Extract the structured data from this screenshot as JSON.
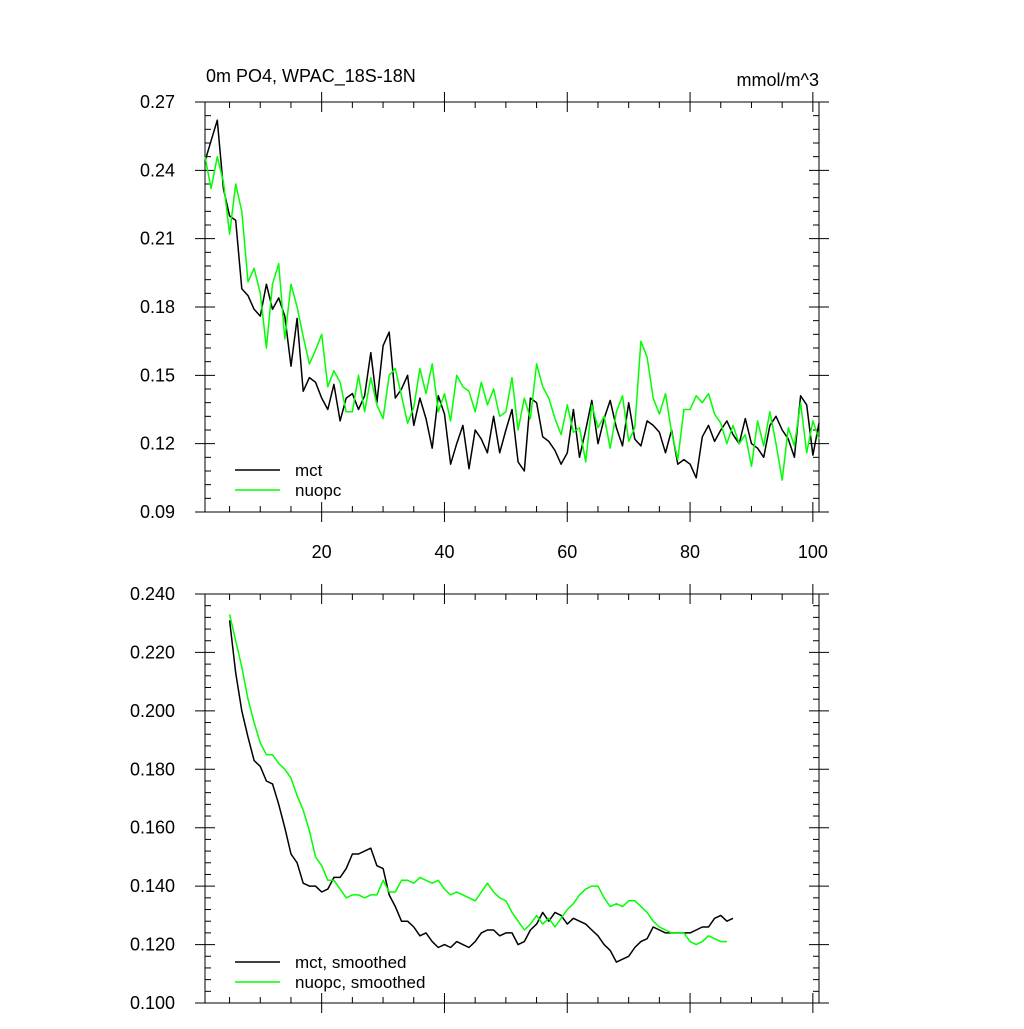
{
  "chart_data": [
    {
      "type": "line",
      "title": "0m PO4, WPAC_18S-18N",
      "units": "mmol/m^3",
      "xlim": [
        1,
        101
      ],
      "ylim": [
        0.09,
        0.27
      ],
      "x_ticks": [
        20,
        40,
        60,
        80,
        100
      ],
      "x_tick_labels": [
        "20",
        "40",
        "60",
        "80",
        "100"
      ],
      "y_ticks": [
        0.09,
        0.12,
        0.15,
        0.18,
        0.21,
        0.24,
        0.27
      ],
      "y_tick_labels": [
        "0.09",
        "0.12",
        "0.15",
        "0.18",
        "0.21",
        "0.24",
        "0.27"
      ],
      "legend_position": "bottom-left",
      "series": [
        {
          "name": "mct",
          "color": "#000000",
          "x_start": 1,
          "values": [
            0.244,
            0.253,
            0.262,
            0.232,
            0.22,
            0.218,
            0.188,
            0.185,
            0.179,
            0.176,
            0.19,
            0.179,
            0.184,
            0.176,
            0.154,
            0.175,
            0.143,
            0.149,
            0.147,
            0.14,
            0.135,
            0.146,
            0.13,
            0.14,
            0.142,
            0.135,
            0.141,
            0.16,
            0.138,
            0.163,
            0.169,
            0.14,
            0.144,
            0.15,
            0.128,
            0.14,
            0.131,
            0.118,
            0.141,
            0.133,
            0.111,
            0.12,
            0.128,
            0.109,
            0.126,
            0.122,
            0.116,
            0.132,
            0.116,
            0.126,
            0.135,
            0.112,
            0.108,
            0.14,
            0.138,
            0.123,
            0.121,
            0.117,
            0.111,
            0.116,
            0.135,
            0.114,
            0.126,
            0.139,
            0.12,
            0.131,
            0.139,
            0.127,
            0.119,
            0.138,
            0.122,
            0.119,
            0.13,
            0.128,
            0.125,
            0.116,
            0.126,
            0.111,
            0.113,
            0.111,
            0.105,
            0.123,
            0.128,
            0.121,
            0.126,
            0.13,
            0.124,
            0.12,
            0.131,
            0.12,
            0.118,
            0.114,
            0.128,
            0.132,
            0.126,
            0.122,
            0.114,
            0.141,
            0.137,
            0.115,
            0.129
          ]
        },
        {
          "name": "nuopc",
          "color": "#00ff00",
          "x_start": 1,
          "values": [
            0.246,
            0.232,
            0.246,
            0.235,
            0.212,
            0.234,
            0.222,
            0.191,
            0.197,
            0.186,
            0.162,
            0.19,
            0.199,
            0.166,
            0.19,
            0.18,
            0.167,
            0.155,
            0.161,
            0.168,
            0.145,
            0.152,
            0.147,
            0.134,
            0.134,
            0.15,
            0.134,
            0.149,
            0.137,
            0.131,
            0.15,
            0.153,
            0.141,
            0.129,
            0.136,
            0.153,
            0.142,
            0.155,
            0.134,
            0.142,
            0.13,
            0.15,
            0.145,
            0.143,
            0.134,
            0.147,
            0.137,
            0.144,
            0.132,
            0.134,
            0.149,
            0.126,
            0.14,
            0.131,
            0.155,
            0.145,
            0.14,
            0.131,
            0.124,
            0.137,
            0.125,
            0.127,
            0.112,
            0.137,
            0.127,
            0.132,
            0.118,
            0.134,
            0.141,
            0.121,
            0.127,
            0.165,
            0.158,
            0.14,
            0.133,
            0.142,
            0.125,
            0.113,
            0.135,
            0.135,
            0.141,
            0.138,
            0.142,
            0.133,
            0.129,
            0.12,
            0.128,
            0.12,
            0.124,
            0.11,
            0.13,
            0.119,
            0.134,
            0.12,
            0.104,
            0.127,
            0.119,
            0.138,
            0.116,
            0.13,
            0.122
          ]
        }
      ]
    },
    {
      "type": "line",
      "xlim": [
        1,
        101
      ],
      "ylim": [
        0.1,
        0.24
      ],
      "x_ticks": [
        20,
        40,
        60,
        80,
        100
      ],
      "x_tick_labels": [],
      "y_ticks": [
        0.1,
        0.12,
        0.14,
        0.16,
        0.18,
        0.2,
        0.22,
        0.24
      ],
      "y_tick_labels": [
        "0.100",
        "0.120",
        "0.140",
        "0.160",
        "0.180",
        "0.200",
        "0.220",
        "0.240"
      ],
      "legend_position": "bottom-left",
      "series": [
        {
          "name": "mct, smoothed",
          "color": "#000000",
          "x_start": 5,
          "values": [
            0.231,
            0.213,
            0.2,
            0.191,
            0.183,
            0.181,
            0.176,
            0.175,
            0.168,
            0.16,
            0.151,
            0.148,
            0.141,
            0.14,
            0.14,
            0.138,
            0.139,
            0.143,
            0.143,
            0.146,
            0.151,
            0.151,
            0.152,
            0.153,
            0.147,
            0.146,
            0.137,
            0.133,
            0.128,
            0.128,
            0.126,
            0.123,
            0.124,
            0.121,
            0.119,
            0.12,
            0.119,
            0.121,
            0.12,
            0.119,
            0.121,
            0.124,
            0.125,
            0.125,
            0.123,
            0.124,
            0.124,
            0.12,
            0.121,
            0.125,
            0.127,
            0.131,
            0.128,
            0.131,
            0.13,
            0.127,
            0.129,
            0.128,
            0.127,
            0.125,
            0.123,
            0.12,
            0.118,
            0.114,
            0.115,
            0.116,
            0.119,
            0.121,
            0.122,
            0.126,
            0.125,
            0.124,
            0.124,
            0.124,
            0.124,
            0.124,
            0.125,
            0.126,
            0.126,
            0.129,
            0.13,
            0.128,
            0.129
          ]
        },
        {
          "name": "nuopc, smoothed",
          "color": "#00ff00",
          "x_start": 5,
          "values": [
            0.233,
            0.224,
            0.215,
            0.204,
            0.196,
            0.189,
            0.185,
            0.185,
            0.182,
            0.18,
            0.177,
            0.171,
            0.166,
            0.159,
            0.15,
            0.147,
            0.142,
            0.142,
            0.139,
            0.136,
            0.137,
            0.137,
            0.136,
            0.137,
            0.137,
            0.142,
            0.138,
            0.138,
            0.142,
            0.142,
            0.141,
            0.143,
            0.142,
            0.141,
            0.142,
            0.139,
            0.137,
            0.138,
            0.137,
            0.136,
            0.135,
            0.138,
            0.141,
            0.138,
            0.136,
            0.135,
            0.131,
            0.128,
            0.125,
            0.127,
            0.13,
            0.127,
            0.129,
            0.126,
            0.129,
            0.132,
            0.134,
            0.137,
            0.139,
            0.14,
            0.14,
            0.136,
            0.133,
            0.134,
            0.133,
            0.135,
            0.135,
            0.133,
            0.131,
            0.128,
            0.126,
            0.125,
            0.124,
            0.124,
            0.124,
            0.121,
            0.12,
            0.121,
            0.123,
            0.122,
            0.121,
            0.121
          ]
        }
      ]
    }
  ]
}
